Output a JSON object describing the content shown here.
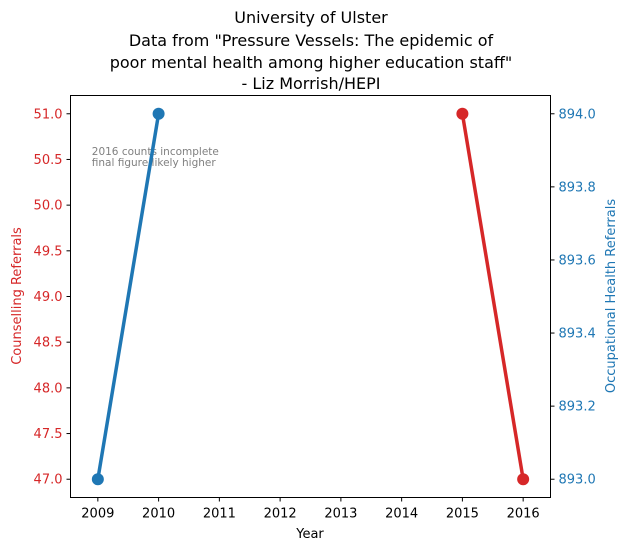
{
  "chart_data": {
    "type": "line",
    "title": [
      "University of Ulster",
      "Data from \"Pressure Vessels: The epidemic of",
      "poor mental health among higher education staff\"",
      "- Liz Morrish/HEPI"
    ],
    "xlabel": "Year",
    "x_ticks": [
      2009,
      2010,
      2011,
      2012,
      2013,
      2014,
      2015,
      2016
    ],
    "xlim": [
      2008.55,
      2016.45
    ],
    "grid": false,
    "series": [
      {
        "name": "Counselling Referrals",
        "axis": "left",
        "color": "#d62728",
        "x": [
          2015,
          2016
        ],
        "y": [
          51,
          47
        ]
      },
      {
        "name": "Occupational Health Referrals",
        "axis": "right",
        "color": "#1f77b4",
        "x": [
          2009,
          2010
        ],
        "y": [
          893,
          894
        ]
      }
    ],
    "y_left": {
      "label": "Counselling Referrals",
      "color": "#d62728",
      "ylim": [
        46.8,
        51.2
      ],
      "ticks": [
        47.0,
        47.5,
        48.0,
        48.5,
        49.0,
        49.5,
        50.0,
        50.5,
        51.0
      ],
      "tick_labels": [
        "47.0",
        "47.5",
        "48.0",
        "48.5",
        "49.0",
        "49.5",
        "50.0",
        "50.5",
        "51.0"
      ]
    },
    "y_right": {
      "label": "Occupational Health Referrals",
      "color": "#1f77b4",
      "ylim": [
        892.95,
        894.05
      ],
      "ticks": [
        893.0,
        893.2,
        893.4,
        893.6,
        893.8,
        894.0
      ],
      "tick_labels": [
        "893.0",
        "893.2",
        "893.4",
        "893.6",
        "893.8",
        "894.0"
      ]
    },
    "annotation": {
      "lines": [
        "2016 counts incomplete",
        "final figure likely higher"
      ],
      "x": 2008.9,
      "y_left": 50.55
    }
  }
}
